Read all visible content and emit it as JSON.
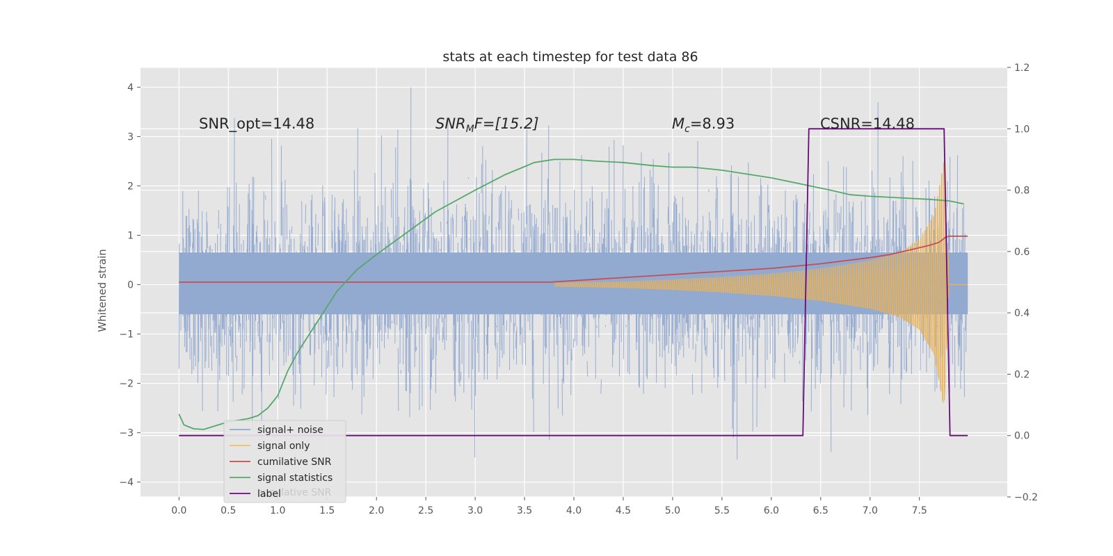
{
  "chart_data": {
    "type": "line",
    "title": "stats at each timestep for test data 86",
    "xlabel": "",
    "ylabel": "Whitened strain",
    "y2label": "",
    "xlim": [
      -0.39,
      8.39
    ],
    "ylim": [
      -4.3,
      4.4
    ],
    "y2lim": [
      -0.2,
      1.2
    ],
    "x_ticks": [
      0.0,
      0.5,
      1.0,
      1.5,
      2.0,
      2.5,
      3.0,
      3.5,
      4.0,
      4.5,
      5.0,
      5.5,
      6.0,
      6.5,
      7.0,
      7.5
    ],
    "y_ticks": [
      4,
      3,
      2,
      1,
      0,
      -1,
      -2,
      -3,
      -4
    ],
    "y2_ticks": [
      1.2,
      1.0,
      0.8,
      0.6,
      0.4,
      0.2,
      0.0,
      -0.2
    ],
    "grid": true,
    "legend_position": "lower-left",
    "annotations": {
      "snr_opt": "SNR_opt=14.48",
      "snr_mf": "SNR",
      "snr_mf_sub": "M",
      "snr_mf_rest": "F=[15.2]",
      "mc": "M",
      "mc_sub": "c",
      "mc_rest": "=8.93",
      "csnr": "CSNR=14.48"
    },
    "legend": [
      {
        "label": "signal+ noise",
        "color": "#92a9d0"
      },
      {
        "label": "signal only",
        "color": "#f2c04f"
      },
      {
        "label": "cumilative SNR",
        "color": "#c44e52"
      },
      {
        "label": "signal statistics",
        "color": "#55a868"
      },
      {
        "label": "label",
        "color": "#6a0a7a"
      }
    ],
    "legend_ghost_text": "cumilative SNR",
    "series": [
      {
        "name": "signal+ noise",
        "axis": "left",
        "color": "#92a9d0",
        "x_range": [
          0.0,
          7.99
        ],
        "envelope_max": 4.0,
        "envelope_min": -3.9,
        "core_band": [
          -0.6,
          0.65
        ]
      },
      {
        "name": "signal only",
        "axis": "left",
        "color": "#e8b25a",
        "x": [
          3.8,
          4.5,
          5.0,
          5.5,
          6.0,
          6.5,
          7.0,
          7.3,
          7.5,
          7.65,
          7.75,
          7.8
        ],
        "amplitude": [
          0.03,
          0.06,
          0.1,
          0.15,
          0.22,
          0.32,
          0.48,
          0.65,
          0.9,
          1.4,
          2.5,
          0.05
        ]
      },
      {
        "name": "cumilative SNR",
        "axis": "right",
        "color": "#c44e52",
        "x": [
          0.0,
          1.0,
          2.0,
          3.0,
          3.75,
          4.0,
          4.5,
          5.0,
          5.5,
          6.0,
          6.5,
          7.0,
          7.2,
          7.4,
          7.6,
          7.7,
          7.76,
          7.8,
          7.99
        ],
        "y": [
          0.5,
          0.5,
          0.5,
          0.5,
          0.5,
          0.505,
          0.515,
          0.525,
          0.535,
          0.545,
          0.56,
          0.58,
          0.59,
          0.605,
          0.62,
          0.63,
          0.645,
          0.65,
          0.65
        ]
      },
      {
        "name": "signal statistics",
        "axis": "right",
        "color": "#55a868",
        "x": [
          0.0,
          0.05,
          0.15,
          0.25,
          0.35,
          0.5,
          0.7,
          0.8,
          0.9,
          1.0,
          1.1,
          1.2,
          1.4,
          1.6,
          1.8,
          2.0,
          2.3,
          2.6,
          3.0,
          3.3,
          3.6,
          3.8,
          4.0,
          4.2,
          4.5,
          4.8,
          5.0,
          5.2,
          5.5,
          5.8,
          6.0,
          6.3,
          6.6,
          6.8,
          7.0,
          7.3,
          7.6,
          7.8,
          7.95
        ],
        "y": [
          0.07,
          0.035,
          0.022,
          0.02,
          0.03,
          0.045,
          0.055,
          0.065,
          0.09,
          0.13,
          0.21,
          0.27,
          0.37,
          0.47,
          0.54,
          0.59,
          0.66,
          0.73,
          0.8,
          0.85,
          0.89,
          0.9,
          0.9,
          0.895,
          0.89,
          0.88,
          0.875,
          0.875,
          0.865,
          0.85,
          0.84,
          0.82,
          0.8,
          0.785,
          0.78,
          0.775,
          0.77,
          0.765,
          0.755
        ]
      },
      {
        "name": "label",
        "axis": "right",
        "color": "#6a0a7a",
        "x": [
          0.0,
          6.32,
          6.38,
          7.75,
          7.81,
          7.99
        ],
        "y": [
          0.0,
          0.0,
          1.0,
          1.0,
          0.0,
          0.0
        ]
      }
    ]
  }
}
